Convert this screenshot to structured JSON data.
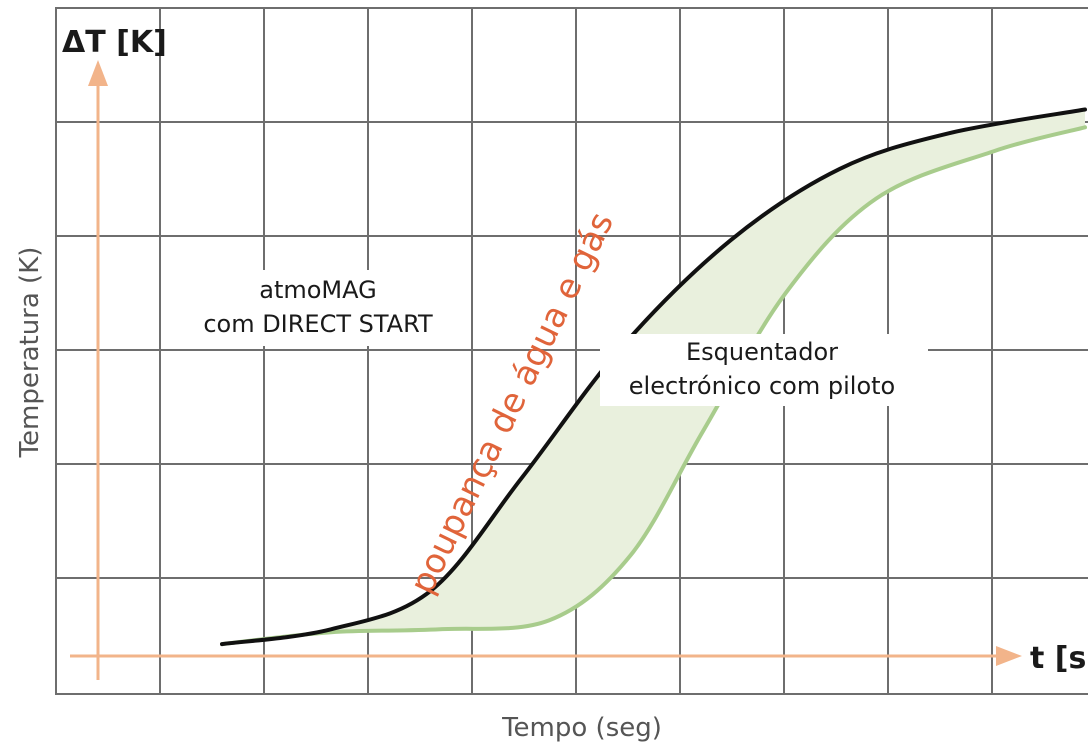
{
  "chart_data": {
    "type": "area",
    "title": "",
    "xlabel": "Tempo (seg)",
    "ylabel": "Temperatura (K)",
    "y_axis_unit_label": "ΔT [K]",
    "x_axis_unit_label": "t [s]",
    "grid": true,
    "x_range": [
      0,
      10
    ],
    "y_range": [
      0,
      10
    ],
    "band_label": "poupança de água e gás",
    "series": [
      {
        "name": "atmoMAG com DIRECT START",
        "name_lines": [
          "atmoMAG",
          "com DIRECT START"
        ],
        "color": "#111111",
        "x": [
          0.0,
          1.2,
          2.3,
          3.3,
          4.4,
          5.6,
          6.8,
          8.0,
          9.5
        ],
        "y": [
          0.0,
          0.25,
          0.9,
          2.8,
          5.0,
          6.8,
          8.0,
          8.6,
          9.0
        ]
      },
      {
        "name": "Esquentador electrónico com piloto",
        "name_lines": [
          "Esquentador",
          "electrónico com piloto"
        ],
        "color": "#a8cc8c",
        "x": [
          0.0,
          1.2,
          2.4,
          3.6,
          4.5,
          5.3,
          6.2,
          7.2,
          8.5,
          9.5
        ],
        "y": [
          0.0,
          0.2,
          0.25,
          0.4,
          1.5,
          3.6,
          5.9,
          7.5,
          8.3,
          8.7
        ]
      }
    ],
    "colors": {
      "grid": "#6e6e6e",
      "axis": "#f2b48a",
      "band_fill": "#e9f0dd",
      "band_text": "#e0643a",
      "text": "#1a1a1a",
      "axis_title": "#555555"
    }
  }
}
